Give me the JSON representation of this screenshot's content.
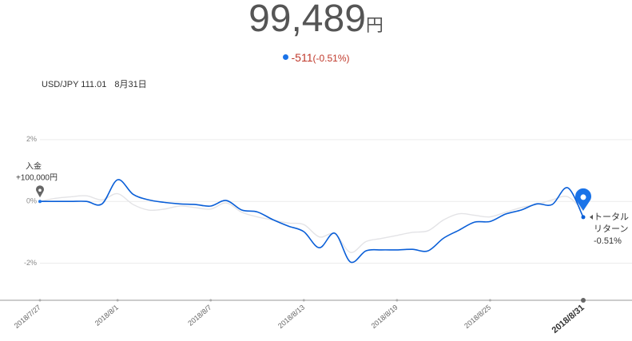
{
  "header": {
    "balance": "99,489",
    "currency": "円",
    "change": "-511",
    "change_pct": "(-0.51%)"
  },
  "info": {
    "rate": "USD/JPY 111.01",
    "date": "8月31日"
  },
  "chart_data": {
    "type": "line",
    "categories": [
      "2018/7/27",
      null,
      null,
      null,
      null,
      "2018/8/1",
      null,
      null,
      null,
      null,
      null,
      "2018/8/7",
      null,
      null,
      null,
      null,
      null,
      "2018/8/13",
      null,
      null,
      null,
      null,
      null,
      "2018/8/19",
      null,
      null,
      null,
      null,
      null,
      "2018/8/25",
      null,
      null,
      null,
      null,
      null,
      "2018/8/31"
    ],
    "series": [
      {
        "color": "#e3e3e6",
        "values": [
          0,
          0.1,
          0.15,
          0.18,
          0.05,
          0.25,
          -0.1,
          -0.28,
          -0.25,
          -0.15,
          -0.2,
          -0.25,
          -0.05,
          -0.35,
          -0.5,
          -0.6,
          -0.7,
          -0.75,
          -1.15,
          -1.05,
          -1.65,
          -1.3,
          -1.2,
          -1.1,
          -1.0,
          -0.95,
          -0.6,
          -0.4,
          -0.45,
          -0.5,
          -0.35,
          -0.2,
          -0.1,
          0.05,
          0.15,
          -0.3
        ]
      },
      {
        "color": "#0a5fd8",
        "values": [
          0,
          0,
          0,
          0,
          -0.08,
          0.7,
          0.23,
          0.05,
          -0.03,
          -0.08,
          -0.1,
          -0.15,
          0.03,
          -0.28,
          -0.34,
          -0.59,
          -0.8,
          -0.98,
          -1.5,
          -1.03,
          -1.96,
          -1.6,
          -1.57,
          -1.57,
          -1.55,
          -1.6,
          -1.19,
          -0.93,
          -0.67,
          -0.65,
          -0.41,
          -0.28,
          -0.08,
          -0.1,
          0.44,
          -0.51
        ]
      }
    ],
    "ylim": [
      -3.2,
      2.9
    ],
    "yticks": [
      {
        "value": 2,
        "label": "2%"
      },
      {
        "value": 0,
        "label": "0%"
      },
      {
        "value": -2,
        "label": "-2%"
      }
    ],
    "grid": true,
    "annotations": {
      "deposit": "入金",
      "deposit_amount": "+100,000円",
      "return_line1": "トータル",
      "return_line2": "リターン",
      "return_pct": "-0.51%"
    }
  }
}
